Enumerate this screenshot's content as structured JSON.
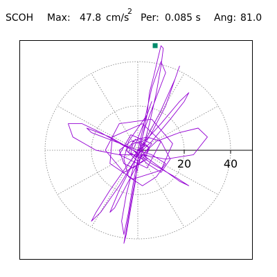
{
  "header": {
    "station": "SCOH",
    "max_label": "Max:",
    "max_value": "47.8",
    "max_unit": "cm/s",
    "max_unit_exp": "2",
    "period_label": "Per:",
    "period_value": "0.085 s",
    "angle_label": "Ang:",
    "angle_value": "81.0"
  },
  "colors": {
    "trace": "#9400d3",
    "peak_marker": "#008b6b",
    "grid": "#7a7a7a",
    "axis": "#000000",
    "frame": "#000000"
  },
  "chart_data": {
    "type": "scatter",
    "description_kind": "polar particle-motion trace",
    "radial_ticks": [
      20,
      40
    ],
    "radial_tick_labels": [
      "20",
      "40"
    ],
    "grid_circles": [
      20,
      40
    ],
    "spoke_angles_deg": [
      0,
      30,
      60,
      90,
      120,
      150,
      180,
      210,
      240,
      270,
      300,
      330
    ],
    "peak": {
      "radius": 47.8,
      "angle_deg": 81.0
    },
    "trace": [
      [
        0,
        0
      ],
      [
        3,
        2
      ],
      [
        -2,
        4
      ],
      [
        -4,
        -1
      ],
      [
        2,
        -4
      ],
      [
        5,
        1
      ],
      [
        -1,
        5
      ],
      [
        -5,
        0
      ],
      [
        0,
        -5
      ],
      [
        6,
        3
      ],
      [
        -3,
        7
      ],
      [
        -8,
        -2
      ],
      [
        4,
        -8
      ],
      [
        10,
        4
      ],
      [
        2,
        12
      ],
      [
        -11,
        6
      ],
      [
        -12,
        -6
      ],
      [
        -2,
        -13
      ],
      [
        10,
        -9
      ],
      [
        15,
        3
      ],
      [
        6,
        14
      ],
      [
        -8,
        12
      ],
      [
        -14,
        0
      ],
      [
        -6,
        -10
      ],
      [
        4,
        -4
      ],
      [
        1,
        2
      ],
      [
        3,
        10
      ],
      [
        8,
        24
      ],
      [
        12,
        35
      ],
      [
        10,
        40
      ],
      [
        6,
        28
      ],
      [
        3,
        14
      ],
      [
        1,
        4
      ],
      [
        -2,
        -8
      ],
      [
        -5,
        -20
      ],
      [
        -7,
        -32
      ],
      [
        -6,
        -38
      ],
      [
        -4,
        -28
      ],
      [
        -2,
        -15
      ],
      [
        0,
        -4
      ],
      [
        2,
        6
      ],
      [
        4,
        16
      ],
      [
        5,
        26
      ],
      [
        7,
        34
      ],
      [
        9,
        43
      ],
      [
        10,
        47.2
      ],
      [
        11,
        46
      ],
      [
        10,
        38
      ],
      [
        8,
        26
      ],
      [
        5,
        12
      ],
      [
        2,
        0
      ],
      [
        -1,
        -12
      ],
      [
        -3,
        -24
      ],
      [
        -5,
        -36
      ],
      [
        -6,
        -42
      ],
      [
        -5,
        -38
      ],
      [
        -3,
        -26
      ],
      [
        -1,
        -14
      ],
      [
        0,
        -4
      ],
      [
        8,
        4
      ],
      [
        18,
        8
      ],
      [
        26,
        10
      ],
      [
        30,
        6
      ],
      [
        24,
        -2
      ],
      [
        12,
        -4
      ],
      [
        2,
        -2
      ],
      [
        -6,
        2
      ],
      [
        -16,
        8
      ],
      [
        -24,
        12
      ],
      [
        -30,
        12
      ],
      [
        -28,
        6
      ],
      [
        -18,
        0
      ],
      [
        -8,
        -2
      ],
      [
        0,
        -2
      ],
      [
        6,
        4
      ],
      [
        14,
        14
      ],
      [
        20,
        22
      ],
      [
        22,
        26
      ],
      [
        18,
        22
      ],
      [
        10,
        12
      ],
      [
        3,
        4
      ],
      [
        -4,
        -6
      ],
      [
        -12,
        -18
      ],
      [
        -18,
        -28
      ],
      [
        -20,
        -32
      ],
      [
        -16,
        -28
      ],
      [
        -8,
        -16
      ],
      [
        -1,
        -4
      ],
      [
        6,
        8
      ],
      [
        12,
        20
      ],
      [
        16,
        32
      ],
      [
        18,
        38
      ],
      [
        16,
        32
      ],
      [
        10,
        18
      ],
      [
        4,
        6
      ],
      [
        -2,
        -6
      ],
      [
        -8,
        -18
      ],
      [
        -12,
        -28
      ],
      [
        -10,
        -26
      ],
      [
        -4,
        -14
      ],
      [
        2,
        -2
      ],
      [
        10,
        -8
      ],
      [
        18,
        -14
      ],
      [
        22,
        -16
      ],
      [
        16,
        -12
      ],
      [
        6,
        -6
      ],
      [
        -2,
        0
      ],
      [
        -12,
        6
      ],
      [
        -22,
        10
      ],
      [
        -20,
        8
      ],
      [
        -10,
        4
      ],
      [
        0,
        0
      ],
      [
        6,
        -2
      ],
      [
        12,
        -6
      ],
      [
        8,
        -12
      ],
      [
        2,
        -16
      ],
      [
        -4,
        -12
      ],
      [
        -6,
        -4
      ],
      [
        -4,
        4
      ],
      [
        0,
        10
      ],
      [
        4,
        16
      ],
      [
        6,
        22
      ],
      [
        4,
        16
      ],
      [
        1,
        8
      ],
      [
        -2,
        0
      ],
      [
        4,
        -6
      ],
      [
        10,
        -10
      ],
      [
        14,
        -4
      ],
      [
        10,
        4
      ],
      [
        4,
        6
      ],
      [
        -3,
        4
      ],
      [
        -8,
        0
      ],
      [
        -6,
        -6
      ],
      [
        -2,
        -8
      ],
      [
        3,
        -4
      ],
      [
        5,
        1
      ],
      [
        2,
        4
      ],
      [
        -2,
        3
      ],
      [
        -3,
        -1
      ],
      [
        -1,
        -3
      ],
      [
        1,
        -1
      ],
      [
        0,
        0
      ]
    ]
  }
}
